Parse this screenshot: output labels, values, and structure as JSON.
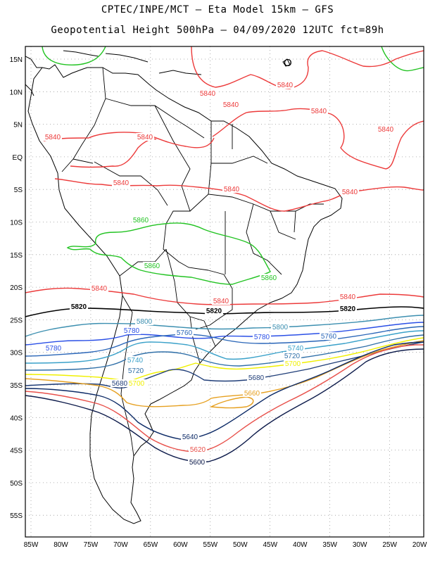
{
  "header": {
    "line1": "CPTEC/INPE/MCT –  Eta Model 15km – GFS",
    "line2": "Geopotential Height 500hPa – 04/09/2020 12UTC fct=89h"
  },
  "map": {
    "lat_labels": [
      "15N",
      "10N",
      "5N",
      "EQ",
      "5S",
      "10S",
      "15S",
      "20S",
      "25S",
      "30S",
      "35S",
      "40S",
      "45S",
      "50S",
      "55S"
    ],
    "lon_labels": [
      "85W",
      "80W",
      "75W",
      "70W",
      "65W",
      "60W",
      "55W",
      "50W",
      "45W",
      "40W",
      "35W",
      "30W",
      "25W",
      "20W"
    ],
    "extra_symbol": "O",
    "contour_colors": {
      "5860": "#22c322",
      "5840": "#ec3a3a",
      "5820": "#000000",
      "5800": "#3c8fb0",
      "5780": "#2a4fe6",
      "5760": "#2a66b8",
      "5740": "#3aa1c9",
      "5720": "#2f6fa8",
      "5700": "#f0f000",
      "5680": "#203e78",
      "5660": "#e6a020",
      "5640": "#0c2a66",
      "5620": "#e8504a",
      "5600": "#0c1a4a",
      "coast": "#000000",
      "grid": "#999999"
    },
    "contour_labels": [
      {
        "id": "l5840a",
        "text": "5840",
        "color": "5840"
      },
      {
        "id": "l5840b",
        "text": "5840",
        "color": "5840"
      },
      {
        "id": "l5840c",
        "text": "5840",
        "color": "5840"
      },
      {
        "id": "l5840d",
        "text": "5840",
        "color": "5840"
      },
      {
        "id": "l5840e",
        "text": "5840",
        "color": "5840"
      },
      {
        "id": "l5840f",
        "text": "5840",
        "color": "5840"
      },
      {
        "id": "l5840g",
        "text": "5840",
        "color": "5840"
      },
      {
        "id": "l5840h",
        "text": "5840",
        "color": "5840"
      },
      {
        "id": "l5840i",
        "text": "5840",
        "color": "5840"
      },
      {
        "id": "l5840j",
        "text": "5840",
        "color": "5840"
      },
      {
        "id": "l5840k",
        "text": "5840",
        "color": "5840"
      },
      {
        "id": "l5840l",
        "text": "5840",
        "color": "5840"
      },
      {
        "id": "l5840m",
        "text": "5840",
        "color": "5840"
      },
      {
        "id": "l5860a",
        "text": "5860",
        "color": "5860"
      },
      {
        "id": "l5860b",
        "text": "5860",
        "color": "5860"
      },
      {
        "id": "l5860c",
        "text": "5860",
        "color": "5860"
      },
      {
        "id": "l5820a",
        "text": "5820",
        "color": "5820"
      },
      {
        "id": "l5820b",
        "text": "5820",
        "color": "5820"
      },
      {
        "id": "l5820c",
        "text": "5820",
        "color": "5820"
      },
      {
        "id": "l5800a",
        "text": "5800",
        "color": "5800"
      },
      {
        "id": "l5800b",
        "text": "5800",
        "color": "5800"
      },
      {
        "id": "l5780a",
        "text": "5780",
        "color": "5780"
      },
      {
        "id": "l5780b",
        "text": "5780",
        "color": "5780"
      },
      {
        "id": "l5780c",
        "text": "5780",
        "color": "5780"
      },
      {
        "id": "l5760a",
        "text": "5760",
        "color": "5760"
      },
      {
        "id": "l5760b",
        "text": "5760",
        "color": "5760"
      },
      {
        "id": "l5760c",
        "text": "5760",
        "color": "5760"
      },
      {
        "id": "l5740a",
        "text": "5740",
        "color": "5740"
      },
      {
        "id": "l5740b",
        "text": "5740",
        "color": "5740"
      },
      {
        "id": "l5720a",
        "text": "5720",
        "color": "5720"
      },
      {
        "id": "l5720b",
        "text": "5720",
        "color": "5720"
      },
      {
        "id": "l5700a",
        "text": "5700",
        "color": "5700"
      },
      {
        "id": "l5700b",
        "text": "5700",
        "color": "5700"
      },
      {
        "id": "l5680a",
        "text": "5680",
        "color": "5680"
      },
      {
        "id": "l5680b",
        "text": "5680",
        "color": "5680"
      },
      {
        "id": "l5660a",
        "text": "5660",
        "color": "5660"
      },
      {
        "id": "l5640a",
        "text": "5640",
        "color": "5640"
      },
      {
        "id": "l5620a",
        "text": "5620",
        "color": "5620"
      },
      {
        "id": "l5600a",
        "text": "5600",
        "color": "5600"
      }
    ]
  }
}
